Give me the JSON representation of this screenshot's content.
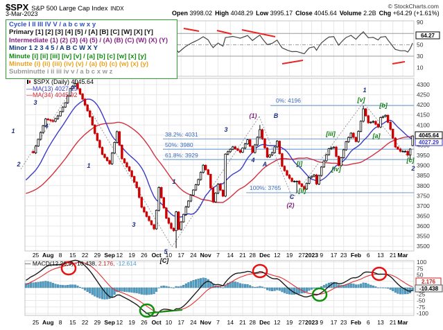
{
  "header": {
    "symbol": "$SPX",
    "name": "S&P 500 Large Cap Index",
    "exchange": "INDX",
    "credit": "© StockCharts.com",
    "date": "3-Mar-2023",
    "fields": [
      {
        "label": "Open",
        "value": "3998.02"
      },
      {
        "label": "High",
        "value": "4048.29"
      },
      {
        "label": "Low",
        "value": "3995.17"
      },
      {
        "label": "Close",
        "value": "4045.64"
      },
      {
        "label": "Volume",
        "value": "2.2B"
      },
      {
        "label": "Chg",
        "value": "+64.29 (+1.61%)"
      }
    ],
    "chg_arrow": "▲"
  },
  "legend": {
    "lines": [
      {
        "text": "Cycle I II III IV V / a b c w x y",
        "color": "#2b50c8"
      },
      {
        "text": "Primary [1] [2] [3] [4] [5] / [A] [B] [C] [W] [X] [Y]",
        "color": "#111111"
      },
      {
        "text": "Intermediate (1) (2) (3) (4) (5) / (A) (B) (C) (W) (X) (Y)",
        "color": "#882288"
      },
      {
        "text": "Minor 1 2 3 4 5 / A B C W X Y",
        "color": "#123a7a"
      },
      {
        "text": "Minute [i] [ii] [iii] [iv] [v] / [a] [b] [c] [w] [x] [y]",
        "color": "#0f8a0f"
      },
      {
        "text": "Minutte (i) (ii) (iii) (iv) (v) / (a) (b) (c) (w) (x) (y)",
        "color": "#eba21c"
      },
      {
        "text": "Subminutte i ii iii iv v / a b c x w z",
        "color": "#999999"
      }
    ]
  },
  "price_header": {
    "title": "$SPX (Daily) 4045.64",
    "ma1": "MA(13) 4027.29",
    "ma2": "MA(34) 4045.92",
    "ma1_color": "#3a3ac8",
    "ma2_color": "#d42e3c"
  },
  "macd_header": {
    "prefix": "— MACD(12,26,9)",
    "v1": "-10.438,",
    "v2": "2.176,",
    "v3": "-12.614",
    "v2_color": "#cc2222",
    "v3_color": "#4a9fd4"
  },
  "chart_data": {
    "type": "candlestick",
    "symbol": "$SPX",
    "timeframe": "Daily",
    "ohlc_today": {
      "open": 3998.02,
      "high": 4048.29,
      "low": 3995.17,
      "close": 4045.64,
      "volume": "2.2B",
      "change": "+64.29 (+1.61%)"
    },
    "overlays": [
      {
        "name": "MA(13)",
        "value": 4027.29
      },
      {
        "name": "MA(34)",
        "value": 4045.92
      }
    ],
    "indicators": [
      {
        "name": "RSI",
        "value": 64.27,
        "levels": [
          70,
          50,
          30
        ]
      },
      {
        "name": "MACD(12,26,9)",
        "macd": -10.438,
        "signal": 2.176,
        "hist": -12.614
      }
    ],
    "y_axis": {
      "min": 3500,
      "max": 4300,
      "step": 50
    },
    "rsi_axis": [
      90,
      70,
      50,
      30,
      10
    ],
    "macd_axis": [
      100,
      75,
      50,
      25,
      0,
      -25,
      -50,
      -75,
      -100
    ],
    "boxes": {
      "price": "4045.64",
      "ma13": "4027.29",
      "rsi": "64.27",
      "macd_signal": "2.176",
      "macd_line": "-10.438"
    },
    "fibonacci": [
      {
        "label": "0%: 4196",
        "value": 4196,
        "x_start": 390,
        "lx": 398,
        "ly": 148
      },
      {
        "label": "38.2%: 4031",
        "value": 4031,
        "x_start": 235,
        "lx": 238,
        "ly": 197
      },
      {
        "label": "50%: 3980",
        "value": 3980,
        "x_start": 235,
        "lx": 238,
        "ly": 212
      },
      {
        "label": "61.8%: 3929",
        "value": 3929,
        "x_start": 235,
        "lx": 238,
        "ly": 227
      },
      {
        "label": "100%: 3765",
        "value": 3765,
        "x_start": 355,
        "lx": 360,
        "ly": 274
      }
    ],
    "wave_labels": [
      {
        "t": "1",
        "x": 19,
        "y": 192,
        "c": "navy"
      },
      {
        "t": "2",
        "x": 27,
        "y": 240,
        "c": "navy"
      },
      {
        "t": "3",
        "x": 51,
        "y": 151,
        "c": "navy"
      },
      {
        "t": "4",
        "x": 67,
        "y": 185,
        "c": "navy"
      },
      {
        "t": "1",
        "x": 128,
        "y": 242,
        "c": "navy"
      },
      {
        "t": "3",
        "x": 193,
        "y": 327,
        "c": "navy"
      },
      {
        "t": "5",
        "x": 239,
        "y": 366,
        "c": "navy"
      },
      {
        "t": "[C]",
        "x": 237,
        "y": 379,
        "c": "black"
      },
      {
        "t": "1",
        "x": 251,
        "y": 265,
        "c": "navy"
      },
      {
        "t": "3",
        "x": 326,
        "y": 190,
        "c": "navy"
      },
      {
        "t": "4",
        "x": 365,
        "y": 234,
        "c": "navy"
      },
      {
        "t": "(1)",
        "x": 365,
        "y": 170,
        "c": "purple"
      },
      {
        "t": "A",
        "x": 382,
        "y": 240,
        "c": "navy"
      },
      {
        "t": "B",
        "x": 398,
        "y": 170,
        "c": "navy"
      },
      {
        "t": "C",
        "x": 421,
        "y": 287,
        "c": "navy"
      },
      {
        "t": "(2)",
        "x": 419,
        "y": 299,
        "c": "purple"
      },
      {
        "t": "[i]",
        "x": 432,
        "y": 239,
        "c": "green"
      },
      {
        "t": "[ii]",
        "x": 436,
        "y": 278,
        "c": "green"
      },
      {
        "t": "[iii]",
        "x": 477,
        "y": 196,
        "c": "green"
      },
      {
        "t": "[iv]",
        "x": 485,
        "y": 247,
        "c": "green"
      },
      {
        "t": "[v]",
        "x": 521,
        "y": 147,
        "c": "green"
      },
      {
        "t": "1",
        "x": 526,
        "y": 133,
        "c": "navy"
      },
      {
        "t": "[a]",
        "x": 543,
        "y": 199,
        "c": "green"
      },
      {
        "t": "[b]",
        "x": 553,
        "y": 155,
        "c": "green"
      },
      {
        "t": "[c]",
        "x": 592,
        "y": 234,
        "c": "green"
      },
      {
        "t": "2",
        "x": 596,
        "y": 246,
        "c": "navy"
      }
    ],
    "label_colors": {
      "navy": "#1a3080",
      "purple": "#7a1f7a",
      "green": "#0f7d0f",
      "black": "#111111"
    },
    "x_ticks": [
      {
        "label": "25",
        "day": 1
      },
      {
        "label": "Aug",
        "day": 6,
        "bold": true
      },
      {
        "label": "8",
        "day": 11
      },
      {
        "label": "15",
        "day": 16
      },
      {
        "label": "22",
        "day": 21
      },
      {
        "label": "29",
        "day": 26
      },
      {
        "label": "Sep",
        "day": 31,
        "bold": true
      },
      {
        "label": "12",
        "day": 35
      },
      {
        "label": "19",
        "day": 40
      },
      {
        "label": "26",
        "day": 45
      },
      {
        "label": "Oct",
        "day": 50,
        "bold": true
      },
      {
        "label": "10",
        "day": 55
      },
      {
        "label": "17",
        "day": 60
      },
      {
        "label": "24",
        "day": 65
      },
      {
        "label": "Nov",
        "day": 70,
        "bold": true
      },
      {
        "label": "7",
        "day": 75
      },
      {
        "label": "14",
        "day": 80
      },
      {
        "label": "21",
        "day": 85
      },
      {
        "label": "28",
        "day": 89
      },
      {
        "label": "Dec",
        "day": 94,
        "bold": true
      },
      {
        "label": "12",
        "day": 99
      },
      {
        "label": "19",
        "day": 104
      },
      {
        "label": "27",
        "day": 109
      },
      {
        "label": "2023",
        "day": 113,
        "bold": true
      },
      {
        "label": "9",
        "day": 117
      },
      {
        "label": "17",
        "day": 122
      },
      {
        "label": "23",
        "day": 126
      },
      {
        "label": "Feb",
        "day": 131,
        "bold": true
      },
      {
        "label": "6",
        "day": 136
      },
      {
        "label": "13",
        "day": 141
      },
      {
        "label": "21",
        "day": 146
      },
      {
        "label": "Mar",
        "day": 150,
        "bold": true
      }
    ],
    "price_anchors": [
      [
        -40,
        3900
      ],
      [
        -34,
        3790
      ],
      [
        -30,
        3750
      ],
      [
        -27,
        3680
      ],
      [
        -25,
        3640
      ],
      [
        -22,
        3675
      ],
      [
        -18,
        3700
      ],
      [
        -15,
        3790
      ],
      [
        -12,
        3820
      ],
      [
        -9,
        3790
      ],
      [
        -6,
        3850
      ],
      [
        -3,
        3900
      ],
      [
        -1,
        3970
      ],
      [
        0,
        3962
      ],
      [
        5,
        4130
      ],
      [
        8,
        4118
      ],
      [
        10,
        4145
      ],
      [
        13,
        4210
      ],
      [
        15,
        4280
      ],
      [
        17,
        4305
      ],
      [
        20,
        4228
      ],
      [
        23,
        4141
      ],
      [
        25,
        4058
      ],
      [
        28,
        3955
      ],
      [
        31,
        3908
      ],
      [
        34,
        4067
      ],
      [
        36,
        3933
      ],
      [
        39,
        3873
      ],
      [
        42,
        3790
      ],
      [
        44,
        3693
      ],
      [
        46,
        3647
      ],
      [
        49,
        3586
      ],
      [
        50,
        3678
      ],
      [
        51,
        3791
      ],
      [
        54,
        3639
      ],
      [
        56,
        3589
      ],
      [
        57,
        3577
      ],
      [
        58,
        3670
      ],
      [
        59,
        3583
      ],
      [
        62,
        3695
      ],
      [
        64,
        3753
      ],
      [
        67,
        3830
      ],
      [
        69,
        3901
      ],
      [
        71,
        3856
      ],
      [
        73,
        3720
      ],
      [
        75,
        3807
      ],
      [
        77,
        3748
      ],
      [
        78,
        3956
      ],
      [
        81,
        3992
      ],
      [
        84,
        3965
      ],
      [
        87,
        4027
      ],
      [
        89,
        3964
      ],
      [
        92,
        4077
      ],
      [
        95,
        3941
      ],
      [
        97,
        3963
      ],
      [
        99,
        4020
      ],
      [
        101,
        3896
      ],
      [
        103,
        3852
      ],
      [
        105,
        3821
      ],
      [
        107,
        3822
      ],
      [
        110,
        3783
      ],
      [
        112,
        3840
      ],
      [
        114,
        3853
      ],
      [
        115,
        3808
      ],
      [
        117,
        3892
      ],
      [
        120,
        3983
      ],
      [
        122,
        3991
      ],
      [
        124,
        3899
      ],
      [
        127,
        4017
      ],
      [
        129,
        4060
      ],
      [
        131,
        4018
      ],
      [
        133,
        4119
      ],
      [
        134,
        4180
      ],
      [
        136,
        4111
      ],
      [
        138,
        4118
      ],
      [
        140,
        4090
      ],
      [
        141,
        4137
      ],
      [
        143,
        4148
      ],
      [
        145,
        4079
      ],
      [
        147,
        3991
      ],
      [
        149,
        3970
      ],
      [
        151,
        3970
      ],
      [
        152,
        3951
      ],
      [
        153,
        3981
      ],
      [
        154,
        4045.64
      ]
    ],
    "ohlc_overrides": {
      "17": {
        "high": 4325
      },
      "58": {
        "low": 3491
      },
      "92": {
        "high": 4100
      },
      "107": {
        "low": 3764
      },
      "134": {
        "high": 4195
      },
      "153": {
        "low": 3928
      },
      "154": {
        "open": 3998.02,
        "high": 4048.29,
        "low": 3995.17,
        "close": 4045.64
      }
    },
    "rsi_trendlines": [
      [
        265,
        41,
        287,
        45
      ],
      [
        313,
        44,
        334,
        49
      ],
      [
        349,
        43,
        397,
        53
      ],
      [
        407,
        92,
        437,
        87
      ],
      [
        566,
        92,
        584,
        89
      ]
    ],
    "macd_annotations": {
      "red_circles": [
        [
          99,
          387
        ],
        [
          375,
          391
        ],
        [
          547,
          395
        ]
      ],
      "green_circles": [
        [
          212,
          448
        ],
        [
          461,
          425
        ]
      ],
      "green_trendline": [
        210,
        452,
        263,
        447
      ]
    },
    "price_connectors": [
      [
        30,
        244,
        108,
        122
      ],
      [
        108,
        122,
        248,
        356
      ],
      [
        248,
        356,
        374,
        168
      ],
      [
        374,
        168,
        422,
        286
      ],
      [
        422,
        286,
        524,
        148
      ],
      [
        524,
        148,
        594,
        233
      ]
    ],
    "colors": {
      "candle_up": "#000000",
      "candle_down": "#cc0000",
      "ma13": "#3a3ac8",
      "ma34": "#d42e3c",
      "fib_line": "#7aa6d8",
      "fib_text": "#3a6abf",
      "rsi_line": "#444444",
      "rsi_over": "#5f8c64",
      "rsi_under": "#8c5f5f",
      "macd_hist": "#4f9fc4",
      "macd_hist_edge": "#2e7196",
      "macd_line": "#1a1a1a",
      "macd_signal": "#e03030",
      "grid": "#e8e8e8",
      "panel_border": "#c4c4c4",
      "axis_text": "#333333"
    }
  }
}
